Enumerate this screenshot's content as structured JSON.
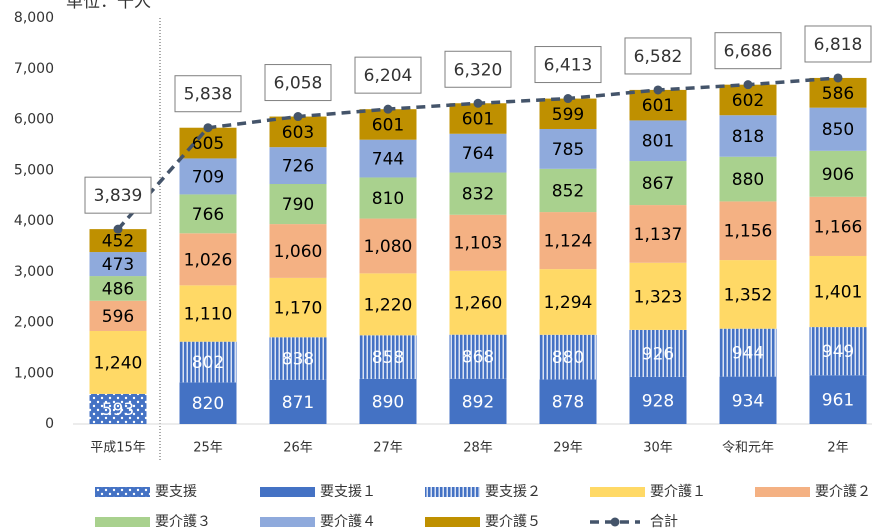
{
  "chart_data": {
    "type": "stacked-bar-line",
    "unit_label": "単位：千人",
    "categories": [
      "平成15年",
      "25年",
      "26年",
      "27年",
      "28年",
      "29年",
      "30年",
      "令和元年",
      "2年"
    ],
    "ylim": [
      0,
      8000
    ],
    "yticks": [
      0,
      {
        "value": 1000,
        "label": "1,000"
      },
      {
        "value": 2000,
        "label": "2,000"
      },
      {
        "value": 3000,
        "label": "3,000"
      },
      {
        "value": 4000,
        "label": "4,000"
      },
      {
        "value": 5000,
        "label": "5,000"
      },
      {
        "value": 6000,
        "label": "6,000"
      },
      {
        "value": 7000,
        "label": "7,000"
      },
      {
        "value": 8000,
        "label": "8,000"
      }
    ],
    "series": [
      {
        "name": "要支援",
        "color": "#4472c4",
        "pattern": "dots",
        "label_color": "#ffffff",
        "values": [
          593,
          null,
          null,
          null,
          null,
          null,
          null,
          null,
          null
        ],
        "value_labels": [
          "593",
          null,
          null,
          null,
          null,
          null,
          null,
          null,
          null
        ]
      },
      {
        "name": "要支援１",
        "color": "#4472c4",
        "label_color": "#ffffff",
        "values": [
          null,
          820,
          871,
          890,
          892,
          878,
          928,
          934,
          961
        ],
        "value_labels": [
          null,
          "820",
          "871",
          "890",
          "892",
          "878",
          "928",
          "934",
          "961"
        ]
      },
      {
        "name": "要支援２",
        "color": "#4472c4",
        "pattern": "stripes",
        "label_color": "#ffffff",
        "values": [
          null,
          802,
          838,
          858,
          868,
          880,
          926,
          944,
          949
        ],
        "value_labels": [
          null,
          "802",
          "838",
          "858",
          "868",
          "880",
          "926",
          "944",
          "949"
        ]
      },
      {
        "name": "要介護１",
        "color": "#ffd966",
        "label_color": "#000000",
        "values": [
          1240,
          1110,
          1170,
          1220,
          1260,
          1294,
          1323,
          1352,
          1401
        ],
        "value_labels": [
          "1,240",
          "1,110",
          "1,170",
          "1,220",
          "1,260",
          "1,294",
          "1,323",
          "1,352",
          "1,401"
        ]
      },
      {
        "name": "要介護２",
        "color": "#f4b183",
        "label_color": "#000000",
        "values": [
          596,
          1026,
          1060,
          1080,
          1103,
          1124,
          1137,
          1156,
          1166
        ],
        "value_labels": [
          "596",
          "1,026",
          "1,060",
          "1,080",
          "1,103",
          "1,124",
          "1,137",
          "1,156",
          "1,166"
        ]
      },
      {
        "name": "要介護３",
        "color": "#a9d18e",
        "label_color": "#000000",
        "values": [
          486,
          766,
          790,
          810,
          832,
          852,
          867,
          880,
          906
        ],
        "value_labels": [
          "486",
          "766",
          "790",
          "810",
          "832",
          "852",
          "867",
          "880",
          "906"
        ]
      },
      {
        "name": "要介護４",
        "color": "#8faadc",
        "label_color": "#000000",
        "values": [
          473,
          709,
          726,
          744,
          764,
          785,
          801,
          818,
          850
        ],
        "value_labels": [
          "473",
          "709",
          "726",
          "744",
          "764",
          "785",
          "801",
          "818",
          "850"
        ]
      },
      {
        "name": "要介護５",
        "color": "#bf9000",
        "label_color": "#000000",
        "values": [
          452,
          605,
          603,
          601,
          601,
          599,
          601,
          602,
          586
        ],
        "value_labels": [
          "452",
          "605",
          "603",
          "601",
          "601",
          "599",
          "601",
          "602",
          "586"
        ]
      }
    ],
    "total": {
      "name": "合計",
      "color": "#44546a",
      "values": [
        3839,
        5838,
        6058,
        6204,
        6320,
        6413,
        6582,
        6686,
        6818
      ],
      "value_labels": [
        "3,839",
        "5,838",
        "6,058",
        "6,204",
        "6,320",
        "6,413",
        "6,582",
        "6,686",
        "6,818"
      ]
    }
  }
}
